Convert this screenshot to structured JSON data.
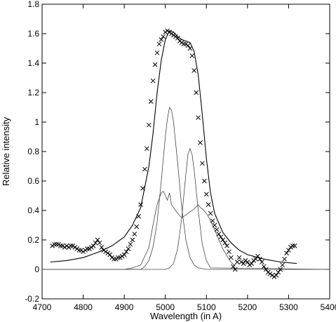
{
  "chart_data": {
    "type": "line",
    "title": "",
    "xlabel": "Wavelength (in A)",
    "ylabel": "Relative intensity",
    "xlim": [
      4700,
      5400
    ],
    "ylim": [
      -0.2,
      1.8
    ],
    "x_ticks": [
      4700,
      4800,
      4900,
      5000,
      5100,
      5200,
      5300,
      5400
    ],
    "y_ticks": [
      -0.2,
      0,
      0.2,
      0.4,
      0.6,
      0.8,
      1,
      1.2,
      1.4,
      1.6,
      1.8
    ],
    "x_tick_labels": [
      "4700",
      "4800",
      "4900",
      "5000",
      "5100",
      "5200",
      "5300",
      "5400"
    ],
    "y_tick_labels": [
      "-0.2",
      "0",
      "0.2",
      "0.4",
      "0.6",
      "0.8",
      "1",
      "1.2",
      "1.4",
      "1.6",
      "1.8"
    ],
    "grid": false,
    "legend": false,
    "series": [
      {
        "style": "markers-x",
        "x": [
          4725,
          4730,
          4735,
          4740,
          4745,
          4750,
          4755,
          4760,
          4765,
          4770,
          4775,
          4780,
          4785,
          4790,
          4795,
          4800,
          4805,
          4810,
          4815,
          4820,
          4825,
          4830,
          4835,
          4840,
          4845,
          4850,
          4855,
          4860,
          4865,
          4870,
          4875,
          4880,
          4885,
          4890,
          4895,
          4900,
          4905,
          4910,
          4915,
          4920,
          4925,
          4930,
          4935,
          4940,
          4945,
          4950,
          4955,
          4960,
          4965,
          4970,
          4975,
          4980,
          4985,
          4990,
          4995,
          5000,
          5005,
          5010,
          5015,
          5020,
          5025,
          5030,
          5035,
          5040,
          5045,
          5050,
          5055,
          5060,
          5065,
          5070,
          5075,
          5080,
          5085,
          5090,
          5095,
          5100,
          5105,
          5110,
          5115,
          5120,
          5125,
          5130,
          5135,
          5140,
          5145,
          5150,
          5155,
          5160,
          5165,
          5170,
          5175,
          5180,
          5185,
          5190,
          5195,
          5200,
          5205,
          5210,
          5215,
          5220,
          5225,
          5230,
          5235,
          5240,
          5245,
          5250,
          5255,
          5260,
          5265,
          5270,
          5275,
          5280,
          5285,
          5290,
          5295,
          5300,
          5305,
          5310,
          5315
        ],
        "y": [
          0.16,
          0.17,
          0.17,
          0.17,
          0.16,
          0.16,
          0.15,
          0.16,
          0.15,
          0.16,
          0.16,
          0.15,
          0.14,
          0.13,
          0.13,
          0.12,
          0.13,
          0.14,
          0.14,
          0.15,
          0.16,
          0.18,
          0.2,
          0.18,
          0.15,
          0.13,
          0.12,
          0.11,
          0.1,
          0.08,
          0.07,
          0.07,
          0.08,
          0.08,
          0.09,
          0.1,
          0.12,
          0.14,
          0.17,
          0.2,
          0.24,
          0.29,
          0.36,
          0.44,
          0.55,
          0.68,
          0.82,
          0.98,
          1.14,
          1.28,
          1.39,
          1.47,
          1.53,
          1.56,
          1.58,
          1.61,
          1.62,
          1.61,
          1.6,
          1.59,
          1.58,
          1.57,
          1.55,
          1.54,
          1.53,
          1.53,
          1.52,
          1.5,
          1.45,
          1.35,
          1.2,
          1.03,
          0.86,
          0.72,
          0.6,
          0.51,
          0.44,
          0.38,
          0.33,
          0.3,
          0.27,
          0.24,
          0.22,
          0.2,
          0.18,
          0.16,
          0.12,
          0.08,
          0.02,
          0.0,
          0.05,
          0.08,
          0.05,
          0.04,
          0.06,
          0.05,
          0.03,
          0.04,
          0.06,
          0.07,
          0.09,
          0.07,
          0.05,
          0.02,
          0.0,
          -0.02,
          -0.03,
          -0.04,
          -0.05,
          -0.04,
          -0.02,
          0.0,
          0.03,
          0.07,
          0.11,
          0.13,
          0.15,
          0.16,
          0.16
        ]
      },
      {
        "style": "line",
        "x": [
          4720,
          4760,
          4800,
          4840,
          4870,
          4900,
          4920,
          4940,
          4960,
          4970,
          4980,
          4990,
          5000,
          5010,
          5020,
          5030,
          5040,
          5050,
          5060,
          5070,
          5080,
          5090,
          5100,
          5110,
          5120,
          5140,
          5160,
          5180,
          5200,
          5240,
          5280,
          5320
        ],
        "y": [
          0.05,
          0.06,
          0.08,
          0.12,
          0.16,
          0.22,
          0.3,
          0.42,
          0.7,
          0.92,
          1.2,
          1.42,
          1.56,
          1.62,
          1.61,
          1.58,
          1.56,
          1.55,
          1.54,
          1.48,
          1.32,
          1.05,
          0.75,
          0.52,
          0.38,
          0.25,
          0.18,
          0.13,
          0.1,
          0.07,
          0.05,
          0.04
        ]
      },
      {
        "style": "line",
        "x": [
          4700,
          4940,
          4950,
          4960,
          4970,
          4980,
          4990,
          5000,
          5005,
          5010,
          5015,
          5020,
          5030,
          5040,
          5050,
          5060,
          5070,
          5080,
          5100,
          5400
        ],
        "y": [
          0,
          0,
          0.02,
          0.06,
          0.15,
          0.32,
          0.6,
          0.9,
          1.02,
          1.1,
          1.08,
          1.0,
          0.72,
          0.42,
          0.2,
          0.08,
          0.03,
          0.01,
          0,
          0
        ]
      },
      {
        "style": "line",
        "x": [
          4700,
          5000,
          5010,
          5020,
          5030,
          5040,
          5050,
          5055,
          5060,
          5065,
          5070,
          5080,
          5090,
          5100,
          5110,
          5400
        ],
        "y": [
          0,
          0,
          0.01,
          0.04,
          0.14,
          0.35,
          0.65,
          0.78,
          0.82,
          0.78,
          0.68,
          0.4,
          0.17,
          0.06,
          0.01,
          0
        ]
      },
      {
        "style": "line",
        "x": [
          4900,
          4920,
          4940,
          4960,
          4970,
          4980,
          4990,
          4995,
          5000,
          5005,
          5010,
          5015,
          5020,
          5030,
          5040,
          5050,
          5060,
          5070,
          5080,
          5085,
          5090,
          5100,
          5110,
          5120,
          5130,
          5140,
          5150,
          5160,
          5170
        ],
        "y": [
          0,
          0.01,
          0.03,
          0.15,
          0.3,
          0.44,
          0.52,
          0.53,
          0.5,
          0.47,
          0.52,
          0.44,
          0.42,
          0.38,
          0.35,
          0.37,
          0.39,
          0.41,
          0.44,
          0.42,
          0.41,
          0.38,
          0.33,
          0.27,
          0.2,
          0.14,
          0.09,
          0.05,
          0.02
        ]
      }
    ]
  }
}
